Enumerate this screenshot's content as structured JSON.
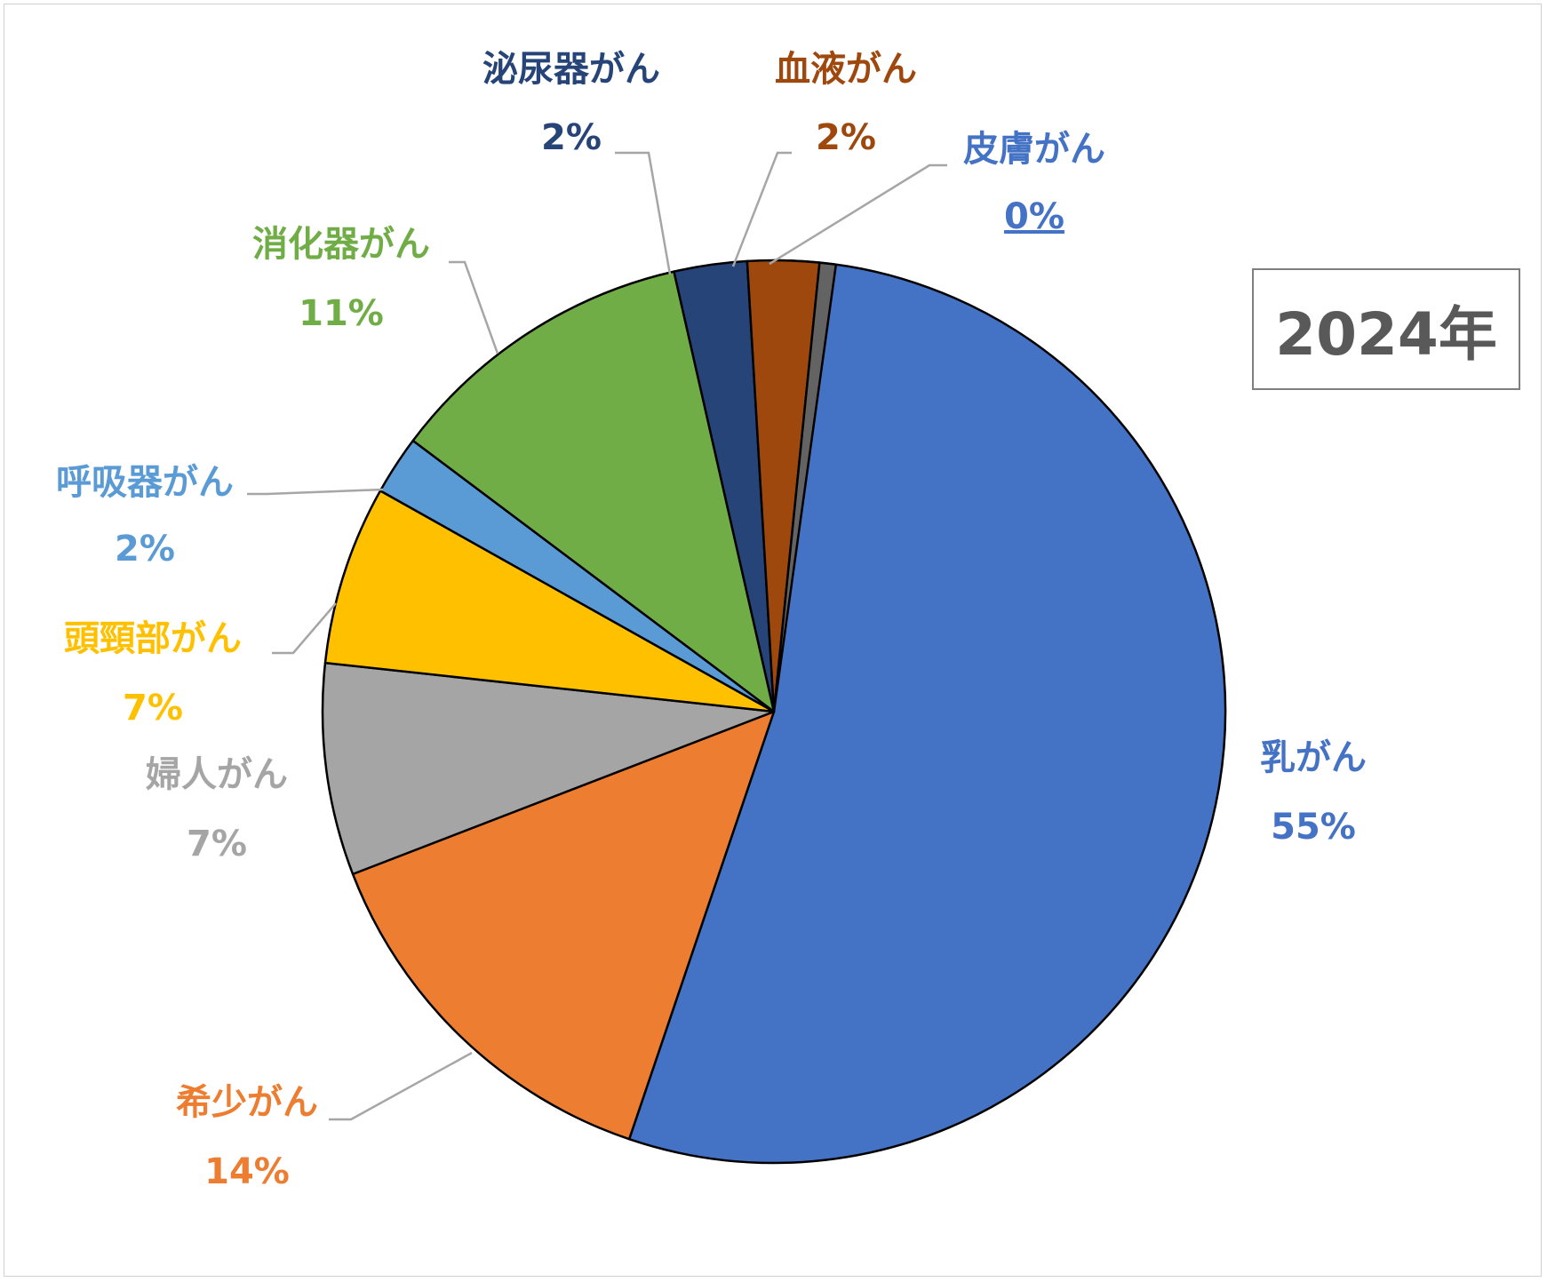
{
  "chart_data": {
    "type": "pie",
    "start_angle_deg": 0,
    "direction": "clockwise",
    "slices": [
      {
        "name": "乳がん",
        "value": 55,
        "pct_label": "55%",
        "color": "#4472C4"
      },
      {
        "name": "希少がん",
        "value": 14,
        "pct_label": "14%",
        "color": "#ED7D31"
      },
      {
        "name": "婦人がん",
        "value": 7,
        "pct_label": "7%",
        "color": "#A5A5A5"
      },
      {
        "name": "頭頸部がん",
        "value": 7,
        "pct_label": "7%",
        "color": "#FFC000"
      },
      {
        "name": "呼吸器がん",
        "value": 2,
        "pct_label": "2%",
        "color": "#5B9BD5"
      },
      {
        "name": "消化器がん",
        "value": 11,
        "pct_label": "11%",
        "color": "#70AD47"
      },
      {
        "name": "泌尿器がん",
        "value": 2,
        "pct_label": "2%",
        "color": "#264478"
      },
      {
        "name": "血液がん",
        "value": 2,
        "pct_label": "2%",
        "color": "#9E480E"
      },
      {
        "name": "皮膚がん",
        "value": 0,
        "pct_label": "0%",
        "color": "#636363"
      }
    ],
    "label_colors": {
      "乳がん": "#4472C4",
      "希少がん": "#ED7D31",
      "婦人がん": "#A5A5A5",
      "頭頸部がん": "#FFC000",
      "呼吸器がん": "#5B9BD5",
      "消化器がん": "#70AD47",
      "泌尿器がん": "#264478",
      "血液がん": "#9E480E",
      "皮膚がん": "#4472C4"
    }
  },
  "year_label": "2024年"
}
